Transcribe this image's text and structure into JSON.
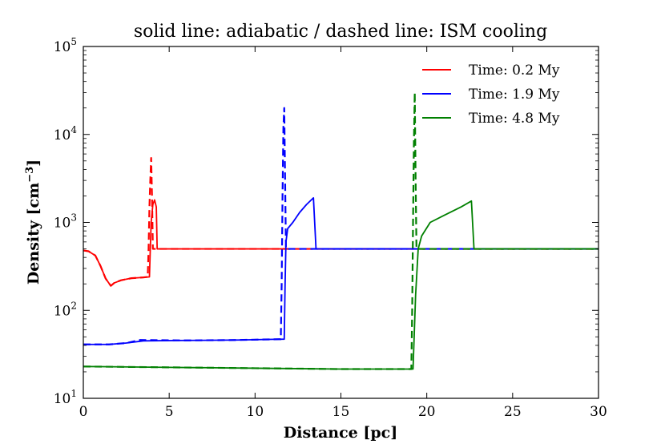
{
  "chart_data": {
    "type": "line",
    "title": "solid line: adiabatic / dashed line: ISM cooling",
    "xlabel": "Distance [pc]",
    "ylabel": "Density [cm",
    "ylabel_sup": "−3",
    "ylabel_close": "]",
    "xlim": [
      0,
      30
    ],
    "ylim": [
      10,
      100000
    ],
    "yscale": "log",
    "x_ticks": [
      0,
      5,
      10,
      15,
      20,
      25,
      30
    ],
    "x_tick_labels": [
      "0",
      "5",
      "10",
      "15",
      "20",
      "25",
      "30"
    ],
    "y_ticks": [
      10,
      100,
      1000,
      10000,
      100000
    ],
    "y_tick_base": "10",
    "y_tick_exponents": [
      "1",
      "2",
      "3",
      "4",
      "5"
    ],
    "legend_position": "top-right",
    "series": [
      {
        "name": "Time: 0.2 My",
        "color": "#ff0000",
        "solid": [
          [
            0,
            480
          ],
          [
            0.3,
            470
          ],
          [
            0.7,
            420
          ],
          [
            1.0,
            320
          ],
          [
            1.3,
            230
          ],
          [
            1.6,
            190
          ],
          [
            1.8,
            205
          ],
          [
            2.2,
            220
          ],
          [
            2.8,
            232
          ],
          [
            3.5,
            237
          ],
          [
            3.85,
            240
          ],
          [
            3.9,
            500
          ],
          [
            3.95,
            1000
          ],
          [
            4.05,
            1600
          ],
          [
            4.15,
            1800
          ],
          [
            4.25,
            1500
          ],
          [
            4.3,
            500
          ],
          [
            30,
            500
          ]
        ],
        "dashed": [
          [
            0,
            480
          ],
          [
            0.3,
            470
          ],
          [
            0.7,
            420
          ],
          [
            1.0,
            320
          ],
          [
            1.3,
            230
          ],
          [
            1.6,
            190
          ],
          [
            1.8,
            205
          ],
          [
            2.2,
            220
          ],
          [
            2.8,
            232
          ],
          [
            3.5,
            237
          ],
          [
            3.75,
            240
          ],
          [
            3.8,
            500
          ],
          [
            3.85,
            1500
          ],
          [
            3.9,
            3000
          ],
          [
            3.95,
            5400
          ],
          [
            4.0,
            2000
          ],
          [
            4.05,
            500
          ],
          [
            30,
            500
          ]
        ]
      },
      {
        "name": "Time: 1.9 My",
        "color": "#0000ff",
        "solid": [
          [
            0,
            41
          ],
          [
            1.5,
            41
          ],
          [
            2.5,
            42.5
          ],
          [
            3.5,
            45
          ],
          [
            6,
            45.5
          ],
          [
            9,
            46
          ],
          [
            11.4,
            47
          ],
          [
            11.7,
            47
          ],
          [
            11.75,
            200
          ],
          [
            11.8,
            600
          ],
          [
            11.9,
            850
          ],
          [
            12.2,
            1000
          ],
          [
            12.6,
            1300
          ],
          [
            13.0,
            1600
          ],
          [
            13.4,
            1900
          ],
          [
            13.55,
            500
          ],
          [
            30,
            500
          ]
        ],
        "dashed": [
          [
            0,
            41
          ],
          [
            1.5,
            41
          ],
          [
            2.5,
            42.5
          ],
          [
            3.3,
            46
          ],
          [
            6,
            45.5
          ],
          [
            9,
            46
          ],
          [
            11.4,
            47
          ],
          [
            11.5,
            47
          ],
          [
            11.55,
            200
          ],
          [
            11.6,
            2000
          ],
          [
            11.65,
            12000
          ],
          [
            11.7,
            20000
          ],
          [
            11.75,
            3000
          ],
          [
            11.8,
            500
          ],
          [
            30,
            500
          ]
        ]
      },
      {
        "name": "Time: 4.8 My",
        "color": "#008000",
        "solid": [
          [
            0,
            23
          ],
          [
            5,
            22.5
          ],
          [
            10,
            22
          ],
          [
            15,
            21.5
          ],
          [
            19.1,
            21.5
          ],
          [
            19.2,
            21.5
          ],
          [
            19.35,
            150
          ],
          [
            19.5,
            500
          ],
          [
            19.7,
            700
          ],
          [
            20.2,
            1000
          ],
          [
            21.0,
            1200
          ],
          [
            22.0,
            1500
          ],
          [
            22.6,
            1750
          ],
          [
            22.75,
            500
          ],
          [
            30,
            500
          ]
        ],
        "dashed": [
          [
            0,
            23
          ],
          [
            5,
            22.5
          ],
          [
            10,
            22
          ],
          [
            15,
            21.5
          ],
          [
            19.1,
            21.5
          ],
          [
            19.15,
            100
          ],
          [
            19.2,
            1000
          ],
          [
            19.25,
            8000
          ],
          [
            19.3,
            30000
          ],
          [
            19.35,
            3000
          ],
          [
            19.4,
            500
          ],
          [
            30,
            500
          ]
        ]
      }
    ]
  }
}
